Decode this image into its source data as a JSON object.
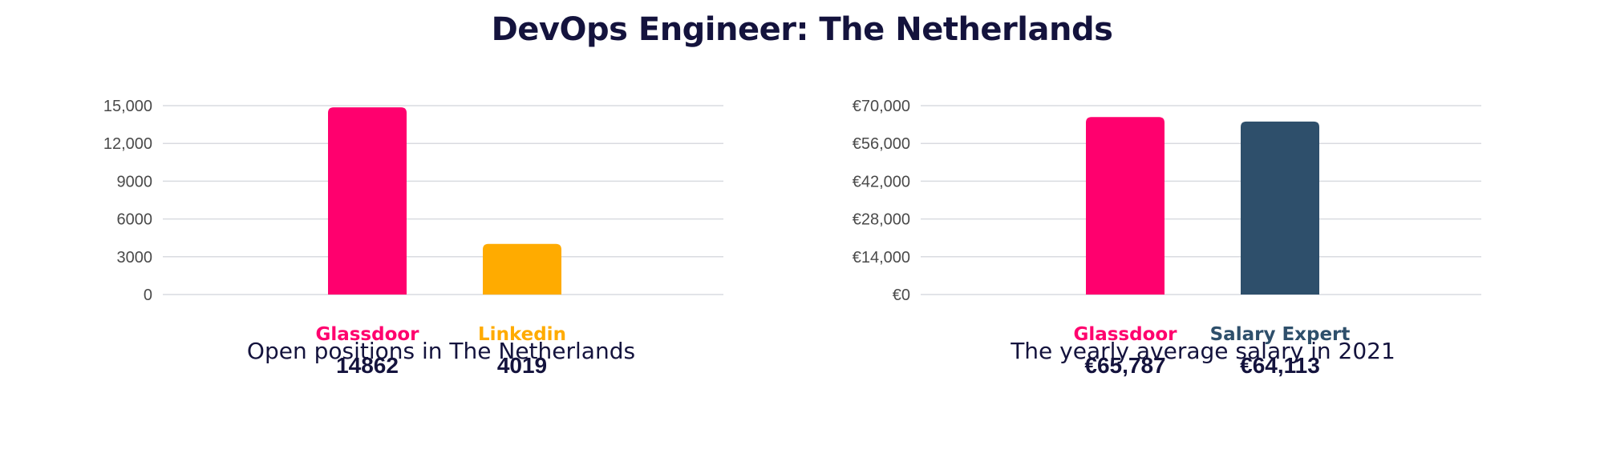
{
  "page": {
    "title": "DevOps Engineer: The Netherlands"
  },
  "chart_data": [
    {
      "type": "bar",
      "title": "",
      "caption": "Open positions in The Netherlands",
      "categories": [
        "Glassdoor",
        "Linkedin"
      ],
      "values": [
        14862,
        4019
      ],
      "value_labels": [
        "14862",
        "4019"
      ],
      "colors": [
        "#ff006e",
        "#ffab00"
      ],
      "ylim": [
        0,
        15000
      ],
      "yticks": [
        0,
        3000,
        6000,
        9000,
        12000,
        15000
      ],
      "ytick_labels": [
        "0",
        "3000",
        "6000",
        "9000",
        "12,000",
        "15,000"
      ],
      "grid": true,
      "xlabel": "",
      "ylabel": ""
    },
    {
      "type": "bar",
      "title": "",
      "caption": "The yearly average salary in 2021",
      "categories": [
        "Glassdoor",
        "Salary Expert"
      ],
      "values": [
        65787,
        64113
      ],
      "value_labels": [
        "€65,787",
        "€64,113"
      ],
      "colors": [
        "#ff006e",
        "#2e4f6b"
      ],
      "ylim": [
        0,
        70000
      ],
      "yticks": [
        0,
        14000,
        28000,
        42000,
        56000,
        70000
      ],
      "ytick_labels": [
        "€0",
        "€14,000",
        "€28,000",
        "€42,000",
        "€56,000",
        "€70,000"
      ],
      "grid": true,
      "xlabel": "",
      "ylabel": ""
    }
  ]
}
